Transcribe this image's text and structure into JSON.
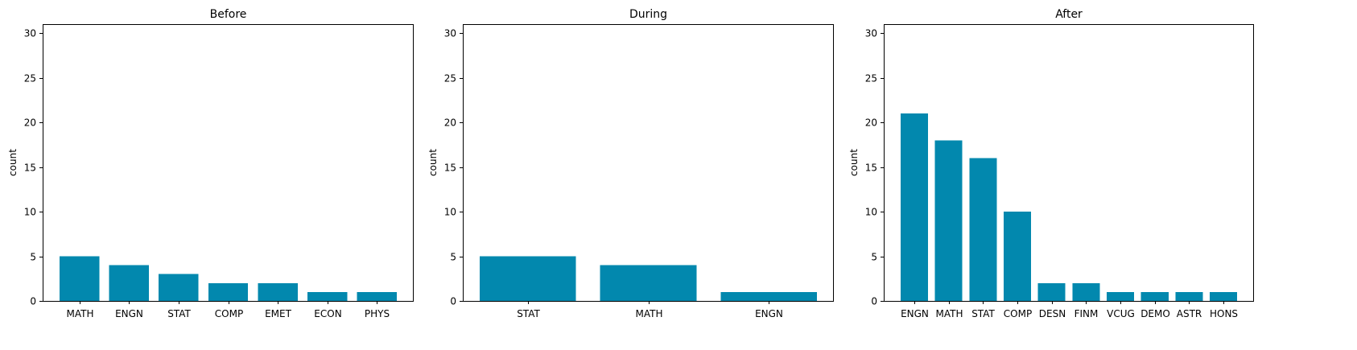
{
  "colors": {
    "bar": "#0288ae",
    "axis": "#000000",
    "background": "#ffffff"
  },
  "chart_data": [
    {
      "type": "bar",
      "title": "Before",
      "ylabel": "count",
      "xlabel": "",
      "ylim": [
        0,
        31
      ],
      "yticks": [
        0,
        5,
        10,
        15,
        20,
        25,
        30
      ],
      "categories": [
        "MATH",
        "ENGN",
        "STAT",
        "COMP",
        "EMET",
        "ECON",
        "PHYS"
      ],
      "values": [
        5,
        4,
        3,
        2,
        2,
        1,
        1
      ],
      "grid": false
    },
    {
      "type": "bar",
      "title": "During",
      "ylabel": "count",
      "xlabel": "",
      "ylim": [
        0,
        31
      ],
      "yticks": [
        0,
        5,
        10,
        15,
        20,
        25,
        30
      ],
      "categories": [
        "STAT",
        "MATH",
        "ENGN"
      ],
      "values": [
        5,
        4,
        1
      ],
      "grid": false
    },
    {
      "type": "bar",
      "title": "After",
      "ylabel": "count",
      "xlabel": "",
      "ylim": [
        0,
        31
      ],
      "yticks": [
        0,
        5,
        10,
        15,
        20,
        25,
        30
      ],
      "categories": [
        "ENGN",
        "MATH",
        "STAT",
        "COMP",
        "DESN",
        "FINM",
        "VCUG",
        "DEMO",
        "ASTR",
        "HONS"
      ],
      "values": [
        21,
        18,
        16,
        10,
        2,
        2,
        1,
        1,
        1,
        1
      ],
      "grid": false
    }
  ]
}
